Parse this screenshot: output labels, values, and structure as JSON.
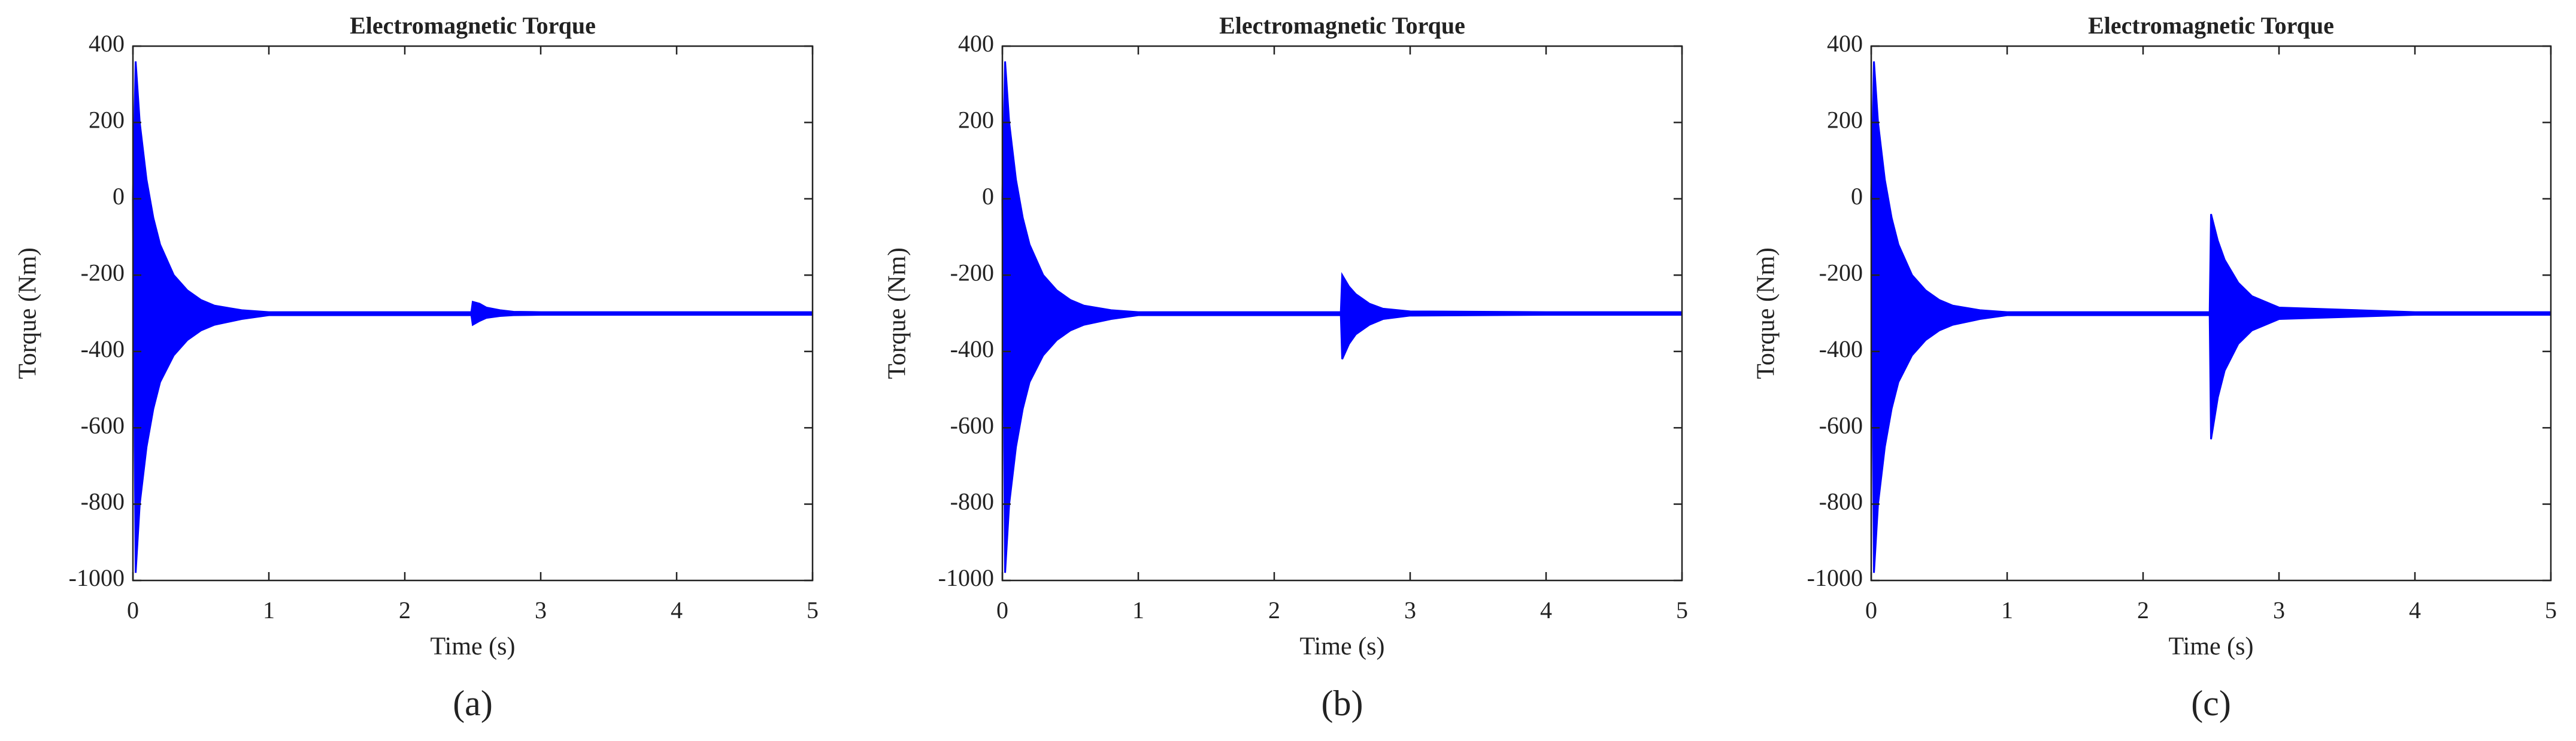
{
  "chart_data": [
    {
      "type": "line",
      "title": "Electromagnetic Torque",
      "xlabel": "Time (s)",
      "ylabel": "Torque (Nm)",
      "caption": "(a)",
      "x": [
        0,
        0.02,
        0.05,
        0.1,
        0.15,
        0.2,
        0.3,
        0.4,
        0.5,
        0.6,
        0.8,
        1,
        2,
        2.49,
        2.5,
        2.55,
        2.6,
        2.7,
        2.8,
        3,
        4,
        5
      ],
      "series": [
        {
          "color": "#0000ff",
          "values": [
            0,
            360,
            200,
            50,
            -50,
            -120,
            -200,
            -240,
            -265,
            -280,
            -292,
            -297,
            -297,
            -297,
            -270,
            -275,
            -285,
            -292,
            -296,
            -297,
            -297,
            -297
          ]
        },
        {
          "color": "#0000ff",
          "values": [
            0,
            -980,
            -800,
            -650,
            -550,
            -480,
            -410,
            -370,
            -345,
            -330,
            -315,
            -305,
            -305,
            -305,
            -330,
            -320,
            -312,
            -307,
            -305,
            -304,
            -304,
            -304
          ]
        }
      ],
      "fill_between": true,
      "xlim": [
        0,
        5
      ],
      "ylim": [
        -1000,
        400
      ],
      "xticks": [
        0,
        1,
        2,
        3,
        4,
        5
      ],
      "yticks": [
        -1000,
        -800,
        -600,
        -400,
        -200,
        0,
        200,
        400
      ]
    },
    {
      "type": "line",
      "title": "Electromagnetic Torque",
      "xlabel": "Time (s)",
      "ylabel": "Torque (Nm)",
      "caption": "(b)",
      "x": [
        0,
        0.02,
        0.05,
        0.1,
        0.15,
        0.2,
        0.3,
        0.4,
        0.5,
        0.6,
        0.8,
        1,
        2,
        2.49,
        2.5,
        2.55,
        2.6,
        2.7,
        2.8,
        3,
        4,
        5
      ],
      "series": [
        {
          "color": "#0000ff",
          "values": [
            0,
            360,
            200,
            50,
            -50,
            -120,
            -200,
            -240,
            -265,
            -280,
            -292,
            -297,
            -297,
            -297,
            -200,
            -230,
            -250,
            -275,
            -288,
            -295,
            -297,
            -297
          ]
        },
        {
          "color": "#0000ff",
          "values": [
            0,
            -980,
            -800,
            -650,
            -550,
            -480,
            -410,
            -370,
            -345,
            -330,
            -315,
            -305,
            -305,
            -305,
            -420,
            -380,
            -355,
            -330,
            -315,
            -306,
            -304,
            -304
          ]
        }
      ],
      "fill_between": true,
      "xlim": [
        0,
        5
      ],
      "ylim": [
        -1000,
        400
      ],
      "xticks": [
        0,
        1,
        2,
        3,
        4,
        5
      ],
      "yticks": [
        -1000,
        -800,
        -600,
        -400,
        -200,
        0,
        200,
        400
      ]
    },
    {
      "type": "line",
      "title": "Electromagnetic Torque",
      "xlabel": "Time (s)",
      "ylabel": "Torque (Nm)",
      "caption": "(c)",
      "x": [
        0,
        0.02,
        0.05,
        0.1,
        0.15,
        0.2,
        0.3,
        0.4,
        0.5,
        0.6,
        0.8,
        1,
        2,
        2.49,
        2.5,
        2.55,
        2.6,
        2.7,
        2.8,
        3,
        4,
        5
      ],
      "series": [
        {
          "color": "#0000ff",
          "values": [
            0,
            360,
            200,
            50,
            -50,
            -120,
            -200,
            -240,
            -265,
            -280,
            -292,
            -297,
            -297,
            -297,
            -40,
            -110,
            -160,
            -220,
            -255,
            -285,
            -297,
            -297
          ]
        },
        {
          "color": "#0000ff",
          "values": [
            0,
            -980,
            -800,
            -650,
            -550,
            -480,
            -410,
            -370,
            -345,
            -330,
            -315,
            -305,
            -305,
            -305,
            -630,
            -520,
            -450,
            -380,
            -345,
            -315,
            -304,
            -304
          ]
        }
      ],
      "fill_between": true,
      "xlim": [
        0,
        5
      ],
      "ylim": [
        -1000,
        400
      ],
      "xticks": [
        0,
        1,
        2,
        3,
        4,
        5
      ],
      "yticks": [
        -1000,
        -800,
        -600,
        -400,
        -200,
        0,
        200,
        400
      ]
    }
  ]
}
